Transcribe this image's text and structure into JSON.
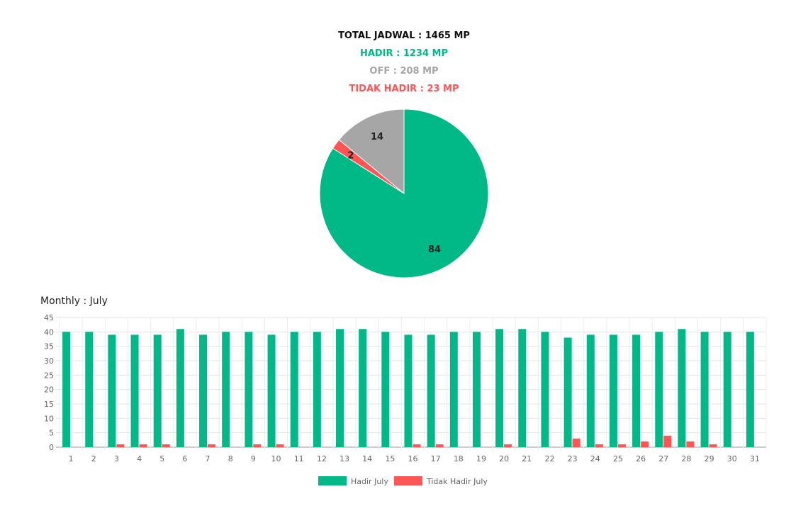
{
  "summary": {
    "total": "TOTAL JADWAL : 1465 MP",
    "hadir": "HADIR : 1234 MP",
    "off": "OFF : 208 MP",
    "tidak_hadir": "TIDAK HADIR : 23 MP"
  },
  "colors": {
    "hadir": "#00b986",
    "off": "#a6a6a6",
    "tidak_hadir": "#ff5555"
  },
  "monthly_title": "Monthly : July",
  "chart_data": [
    {
      "type": "pie",
      "slices": [
        {
          "key": "hadir",
          "value": 84,
          "label": "84"
        },
        {
          "key": "tidak_hadir",
          "value": 2,
          "label": "2"
        },
        {
          "key": "off",
          "value": 14,
          "label": "14"
        }
      ]
    },
    {
      "type": "bar",
      "categories": [
        "1",
        "2",
        "3",
        "4",
        "5",
        "6",
        "7",
        "8",
        "9",
        "10",
        "11",
        "12",
        "13",
        "14",
        "15",
        "16",
        "17",
        "18",
        "19",
        "20",
        "21",
        "22",
        "23",
        "24",
        "25",
        "26",
        "27",
        "28",
        "29",
        "30",
        "31"
      ],
      "series": [
        {
          "name": "Hadir July",
          "color_key": "hadir",
          "values": [
            40,
            40,
            39,
            39,
            39,
            41,
            39,
            40,
            40,
            39,
            40,
            40,
            41,
            41,
            40,
            39,
            39,
            40,
            40,
            41,
            41,
            40,
            38,
            39,
            39,
            39,
            40,
            41,
            40,
            40,
            40
          ]
        },
        {
          "name": "Tidak Hadir July",
          "color_key": "tidak_hadir",
          "values": [
            0,
            0,
            1,
            1,
            1,
            0,
            1,
            0,
            1,
            1,
            0,
            0,
            0,
            0,
            0,
            1,
            1,
            0,
            0,
            1,
            0,
            0,
            3,
            1,
            1,
            2,
            4,
            2,
            1,
            0,
            0
          ]
        }
      ],
      "ylim": [
        0,
        45
      ],
      "yticks": [
        0,
        5,
        10,
        15,
        20,
        25,
        30,
        35,
        40,
        45
      ],
      "grid": true,
      "legend": "bottom"
    }
  ]
}
